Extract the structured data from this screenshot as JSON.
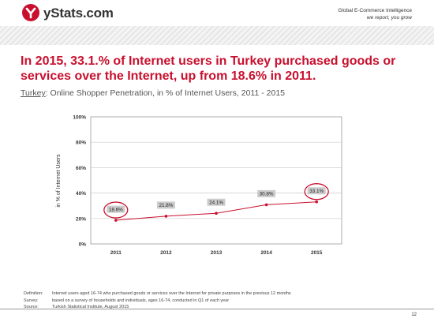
{
  "brand": {
    "name": "yStats.com",
    "tagline1": "Global E-Commerce Intelligence",
    "tagline2": "we report, you grow",
    "color": "#c8102e"
  },
  "headline": "In 2015, 33.1.% of Internet users in Turkey purchased goods or services over the Internet, up from 18.6% in 2011.",
  "subtitle": {
    "country": "Turkey",
    "rest": ": Online Shopper Penetration, in % of Internet Users, 2011 - 2015"
  },
  "chart_data": {
    "type": "line",
    "x": [
      "2011",
      "2012",
      "2013",
      "2014",
      "2015"
    ],
    "series": [
      {
        "values": [
          18.6,
          21.8,
          24.1,
          30.8,
          33.1
        ],
        "color": "#c8102e"
      }
    ],
    "data_labels": [
      "18.6%",
      "21.8%",
      "24.1%",
      "30.8%",
      "33.1%"
    ],
    "highlighted": [
      "2011",
      "2015"
    ],
    "ylabel": "in % of Internet Users",
    "ylim": [
      0,
      100
    ],
    "yticks": [
      "0%",
      "20%",
      "40%",
      "60%",
      "80%",
      "100%"
    ],
    "grid": true
  },
  "footer": {
    "rows": [
      {
        "label": "Definition:",
        "text": "Internet users aged 16-74 who purchased goods or services over the Internet for private purposes in the previous 12 months"
      },
      {
        "label": "Survey:",
        "text": "based on a survey of households and individuals, ages 16-74, conducted in Q1 of each year"
      },
      {
        "label": "Source:",
        "text": "Turkish Statistical Institute, August 2015"
      }
    ]
  },
  "page_number": "12"
}
